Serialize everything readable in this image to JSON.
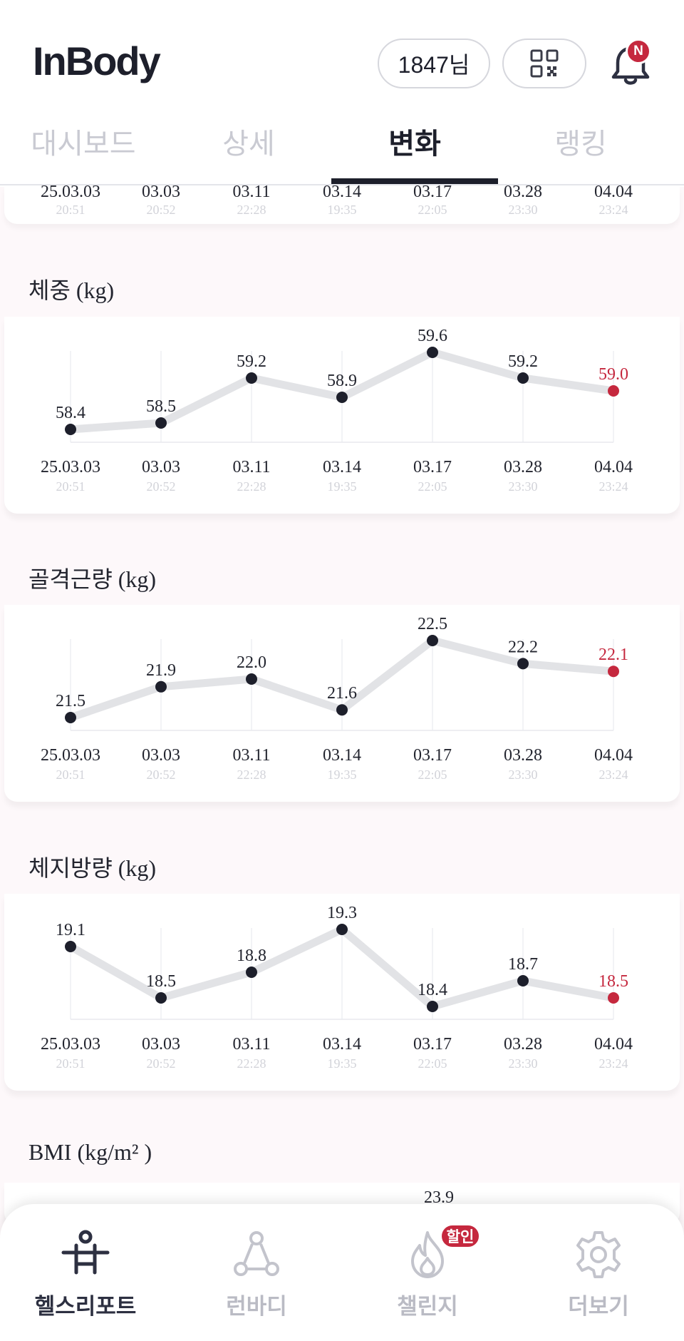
{
  "header": {
    "logo": "InBody",
    "user_label": "1847님",
    "notification_badge": "N",
    "accent_color": "#c5283e"
  },
  "tabs": [
    {
      "label": "대시보드",
      "active": false
    },
    {
      "label": "상세",
      "active": false
    },
    {
      "label": "변화",
      "active": true
    },
    {
      "label": "랭킹",
      "active": false
    }
  ],
  "top_strip": {
    "dates": [
      "25.03.03",
      "03.03",
      "03.11",
      "03.14",
      "03.17",
      "03.28",
      "04.04"
    ],
    "times": [
      "20:51",
      "20:52",
      "22:28",
      "19:35",
      "22:05",
      "23:30",
      "23:24"
    ]
  },
  "sections": [
    {
      "title": "체중 (kg)"
    },
    {
      "title": "골격근량 (kg)"
    },
    {
      "title": "체지방량 (kg)"
    },
    {
      "title": "BMI (kg/m²  )"
    }
  ],
  "chart_data": [
    {
      "type": "line",
      "title": "체중 (kg)",
      "categories": [
        "25.03.03",
        "03.03",
        "03.11",
        "03.14",
        "03.17",
        "03.28",
        "04.04"
      ],
      "sublabels": [
        "20:51",
        "20:52",
        "22:28",
        "19:35",
        "22:05",
        "23:30",
        "23:24"
      ],
      "values": [
        58.4,
        58.5,
        59.2,
        58.9,
        59.6,
        59.2,
        59.0
      ],
      "value_labels": [
        "58.4",
        "58.5",
        "59.2",
        "58.9",
        "59.6",
        "59.2",
        "59.0"
      ],
      "highlight_last": true
    },
    {
      "type": "line",
      "title": "골격근량 (kg)",
      "categories": [
        "25.03.03",
        "03.03",
        "03.11",
        "03.14",
        "03.17",
        "03.28",
        "04.04"
      ],
      "sublabels": [
        "20:51",
        "20:52",
        "22:28",
        "19:35",
        "22:05",
        "23:30",
        "23:24"
      ],
      "values": [
        21.5,
        21.9,
        22.0,
        21.6,
        22.5,
        22.2,
        22.1
      ],
      "value_labels": [
        "21.5",
        "21.9",
        "22.0",
        "21.6",
        "22.5",
        "22.2",
        "22.1"
      ],
      "highlight_last": true
    },
    {
      "type": "line",
      "title": "체지방량 (kg)",
      "categories": [
        "25.03.03",
        "03.03",
        "03.11",
        "03.14",
        "03.17",
        "03.28",
        "04.04"
      ],
      "sublabels": [
        "20:51",
        "20:52",
        "22:28",
        "19:35",
        "22:05",
        "23:30",
        "23:24"
      ],
      "values": [
        19.1,
        18.5,
        18.8,
        19.3,
        18.4,
        18.7,
        18.5
      ],
      "value_labels": [
        "19.1",
        "18.5",
        "18.8",
        "19.3",
        "18.4",
        "18.7",
        "18.5"
      ],
      "highlight_last": true
    }
  ],
  "bmi_partial_label": "23.9",
  "bottom_nav": [
    {
      "label": "헬스리포트",
      "icon": "person-icon",
      "active": true
    },
    {
      "label": "런바디",
      "icon": "network-icon",
      "active": false
    },
    {
      "label": "챌린지",
      "icon": "flame-icon",
      "active": false,
      "badge": "할인"
    },
    {
      "label": "더보기",
      "icon": "gear-icon",
      "active": false
    }
  ]
}
